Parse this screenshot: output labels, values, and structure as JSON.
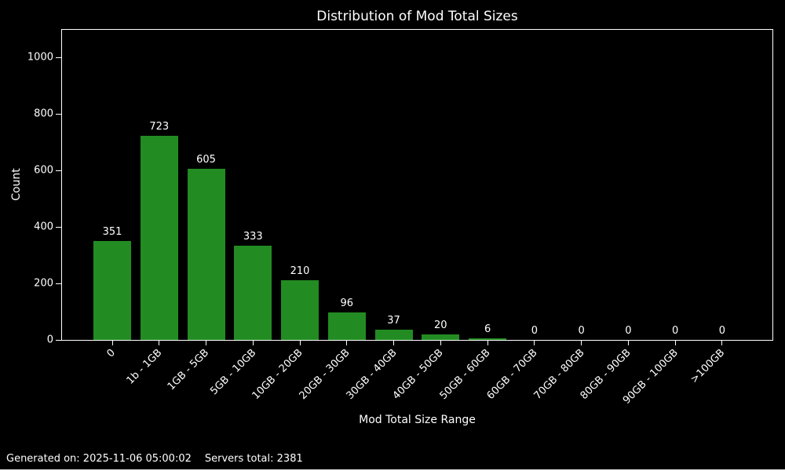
{
  "footer": {
    "generated_label": "Generated on: 2025-11-06 05:00:02",
    "servers_label": "Servers total: 2381"
  },
  "colors": {
    "background": "#000000",
    "text": "#ffffff",
    "axis": "#ffffff",
    "bar": "#228B22",
    "divider": "#ffffff"
  },
  "chart_data": {
    "type": "bar",
    "title": "Distribution of Mod Total Sizes",
    "xlabel": "Mod Total Size Range",
    "ylabel": "Count",
    "categories": [
      "0",
      "1b - 1GB",
      "1GB - 5GB",
      "5GB - 10GB",
      "10GB - 20GB",
      "20GB - 30GB",
      "30GB - 40GB",
      "40GB - 50GB",
      "50GB - 60GB",
      "60GB - 70GB",
      "70GB - 80GB",
      "80GB - 90GB",
      "90GB - 100GB",
      ">100GB"
    ],
    "values": [
      351,
      723,
      605,
      333,
      210,
      96,
      37,
      20,
      6,
      0,
      0,
      0,
      0,
      0
    ],
    "yticks": [
      0,
      200,
      400,
      600,
      800,
      1000
    ],
    "ylim": [
      0,
      1103
    ],
    "grid": false,
    "legend": null,
    "bar_color": "#228B22",
    "background_color": "#000000",
    "text_color": "#ffffff",
    "xtick_rotation_deg": 45
  }
}
